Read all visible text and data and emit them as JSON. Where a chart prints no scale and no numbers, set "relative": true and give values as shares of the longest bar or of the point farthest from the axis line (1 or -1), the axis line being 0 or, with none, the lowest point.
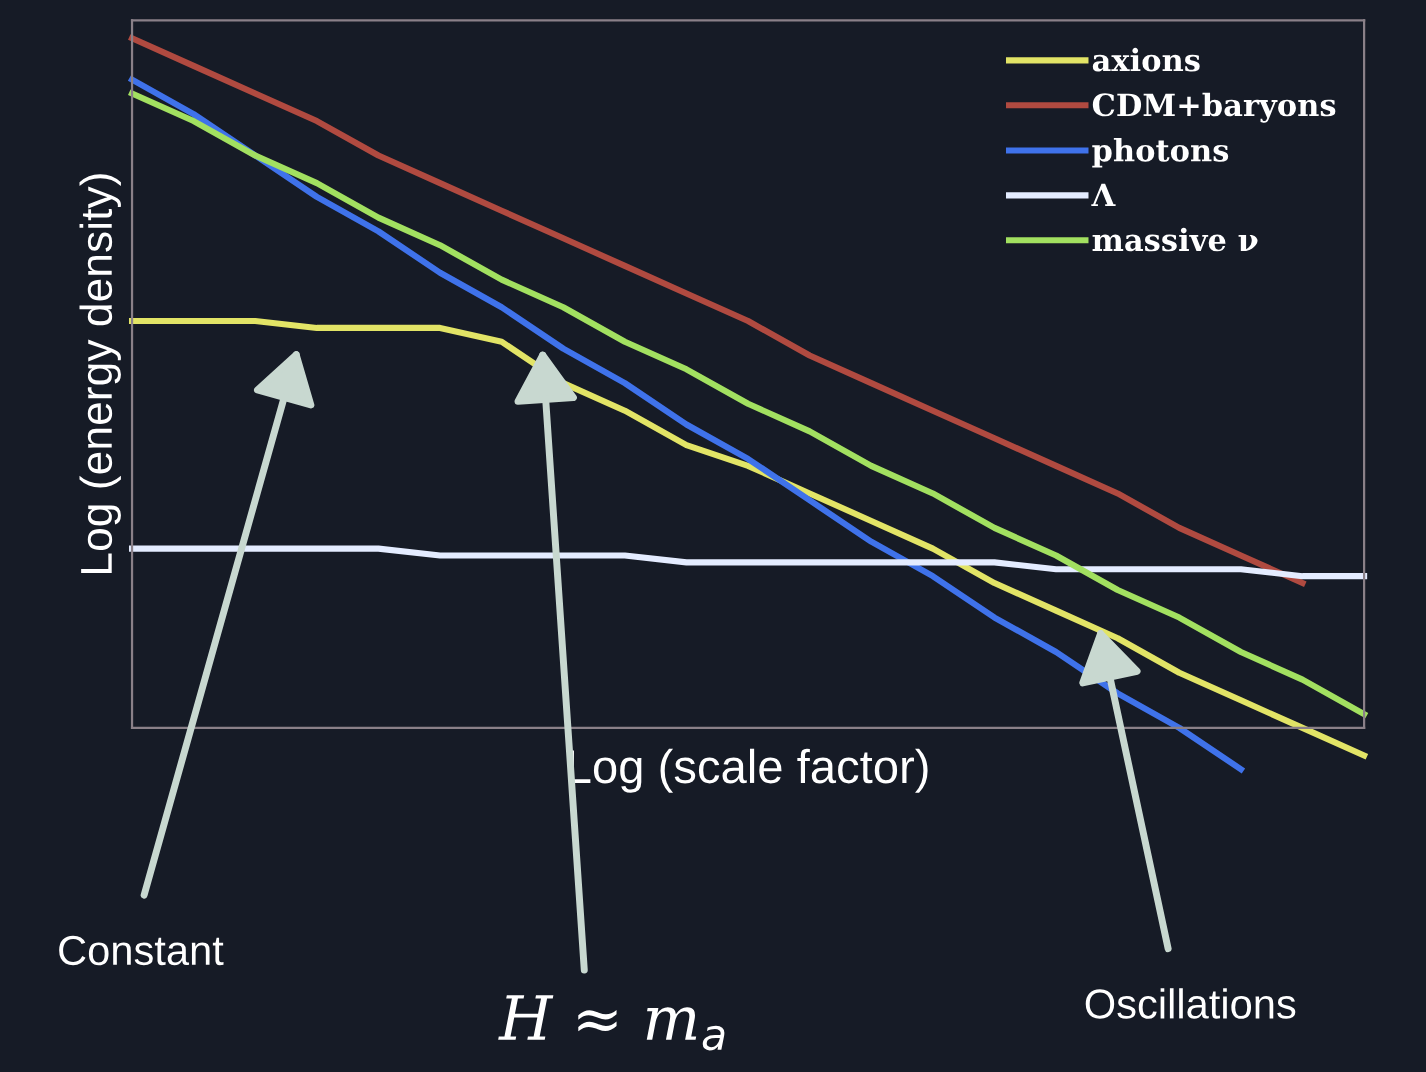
{
  "chart_data": {
    "type": "line",
    "relative": true,
    "xlabel": "Log (scale factor)",
    "ylabel": "Log (energy density)",
    "categories": [
      null,
      null,
      null,
      null,
      null,
      null,
      null,
      null,
      null,
      null,
      null,
      null,
      null,
      null,
      null,
      null,
      null,
      null,
      null,
      null,
      null
    ],
    "series": [
      {
        "name": "axions",
        "color": "#e2e466",
        "values": [
          0.59,
          0.59,
          0.59,
          0.58,
          0.58,
          0.58,
          0.56,
          0.5,
          0.46,
          0.41,
          0.38,
          0.34,
          0.3,
          0.26,
          0.21,
          0.17,
          0.13,
          0.08,
          0.04,
          0.0,
          -0.04
        ]
      },
      {
        "name": "CDM+baryons",
        "color": "#b04a40",
        "values": [
          1,
          0.96,
          0.92,
          0.88,
          0.83,
          0.79,
          0.75,
          0.71,
          0.67,
          0.63,
          0.59,
          0.54,
          0.5,
          0.46,
          0.42,
          0.38,
          0.34,
          0.29,
          0.25,
          0.21,
          null
        ]
      },
      {
        "name": "photons",
        "color": "#3f72ea",
        "values": [
          0.94,
          0.89,
          0.83,
          0.77,
          0.72,
          0.66,
          0.61,
          0.55,
          0.5,
          0.44,
          0.39,
          0.33,
          0.27,
          0.22,
          0.16,
          0.11,
          0.05,
          0.0,
          -0.06,
          null,
          null
        ]
      },
      {
        "name": "Λ",
        "color": "#e4ecff",
        "values": [
          0.26,
          0.26,
          0.26,
          0.26,
          0.26,
          0.25,
          0.25,
          0.25,
          0.25,
          0.24,
          0.24,
          0.24,
          0.24,
          0.24,
          0.24,
          0.23,
          0.23,
          0.23,
          0.23,
          0.22,
          0.22
        ]
      },
      {
        "name": "massive ν",
        "color": "#a2e060",
        "values": [
          0.92,
          0.88,
          0.83,
          0.79,
          0.74,
          0.7,
          0.65,
          0.61,
          0.56,
          0.52,
          0.47,
          0.43,
          0.38,
          0.34,
          0.29,
          0.25,
          0.2,
          0.16,
          0.11,
          0.07,
          0.02
        ]
      }
    ],
    "legend": "top right",
    "grid": false,
    "marker": "none",
    "line_style": "solid",
    "annotations": [
      "Constant",
      "H ≈ m$_{a}$",
      "Oscillations"
    ]
  }
}
